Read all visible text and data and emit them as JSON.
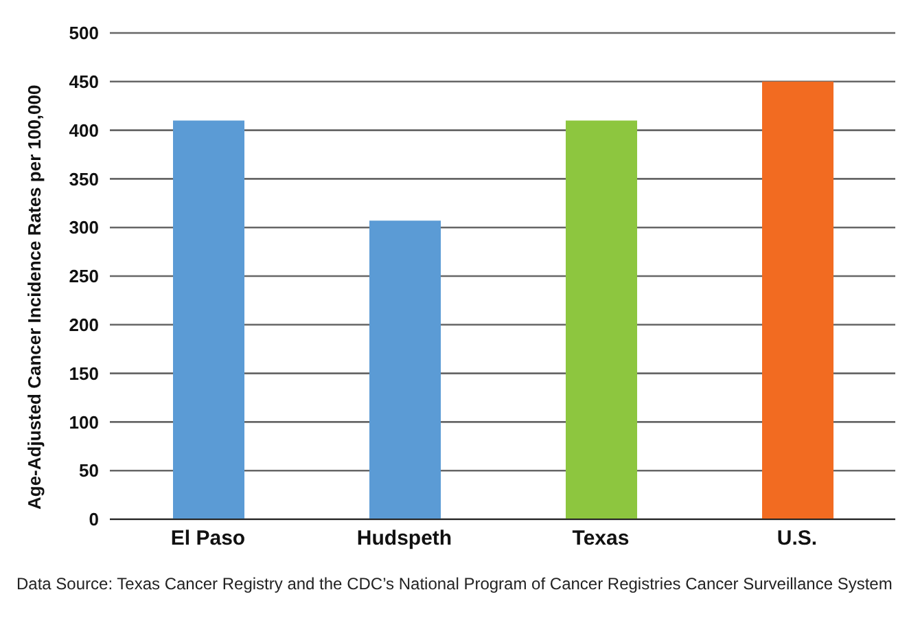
{
  "chart_data": {
    "type": "bar",
    "ylabel": "Age-Adjusted Cancer Incidence Rates per 100,000",
    "categories": [
      "El Paso",
      "Hudspeth",
      "Texas",
      "U.S."
    ],
    "values": [
      410,
      307,
      410,
      450
    ],
    "colors": [
      "#5b9bd5",
      "#5b9bd5",
      "#8dc63f",
      "#f26b21"
    ],
    "ylim": [
      0,
      500
    ],
    "yticks": [
      0,
      50,
      100,
      150,
      200,
      250,
      300,
      350,
      400,
      450,
      500
    ],
    "grid": "y",
    "annotations": [
      "Data Source: Texas Cancer Registry and the CDC’s National Program of Cancer Registries Cancer Surveillance System"
    ]
  }
}
